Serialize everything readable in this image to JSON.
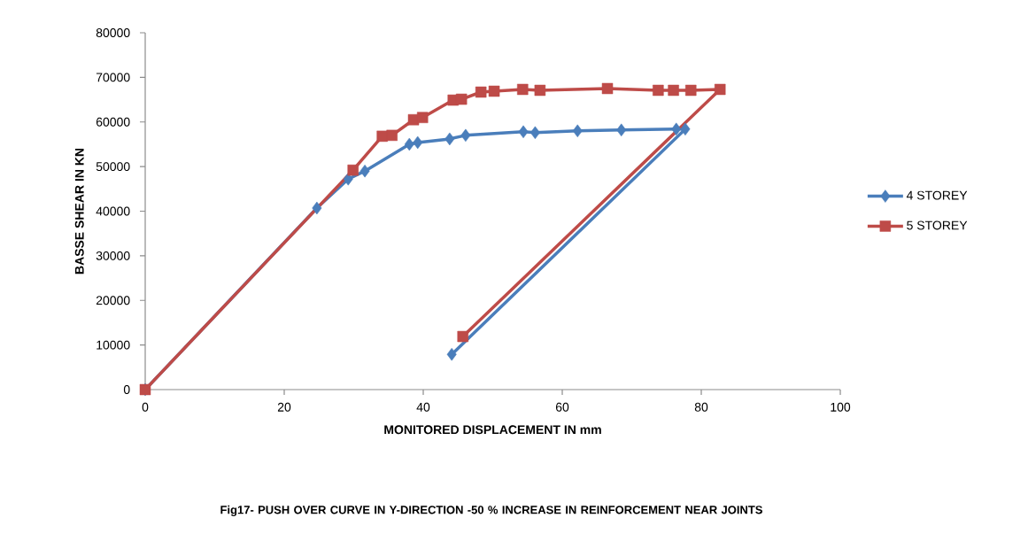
{
  "chart_data": {
    "type": "line",
    "xlabel": "MONITORED DISPLACEMENT IN mm",
    "ylabel": "BASSE SHEAR IN KN",
    "annotations": [
      "Fig17- PUSH  OVER CURVE IN Y-DIRECTION -50 % INCREASE IN REINFORCEMENT NEAR JOINTS"
    ],
    "xlim": [
      0,
      100
    ],
    "xticks": [
      0,
      20,
      40,
      60,
      80,
      100
    ],
    "ylim": [
      0,
      80000
    ],
    "yticks": [
      0,
      10000,
      20000,
      30000,
      40000,
      50000,
      60000,
      70000,
      80000
    ],
    "grid": false,
    "legend": "right",
    "line_style": "solid",
    "series": [
      {
        "name": "4 STOREY",
        "color": "#4a7ebb",
        "marker": "diamond",
        "x": [
          0,
          24.7,
          29.2,
          31.6,
          38,
          39.2,
          43.8,
          46.1,
          54.4,
          56.1,
          62.2,
          68.5,
          76.4,
          77.7,
          44.1
        ],
        "values": [
          0,
          40700,
          47200,
          49000,
          55000,
          55400,
          56200,
          57000,
          57800,
          57600,
          58000,
          58200,
          58400,
          58400,
          7900
        ]
      },
      {
        "name": "5 STOREY",
        "color": "#be4b48",
        "marker": "square",
        "x": [
          0,
          29.9,
          34.1,
          35.5,
          38.6,
          39.9,
          44.3,
          45.5,
          48.3,
          50.2,
          54.3,
          56.8,
          66.5,
          73.8,
          76,
          78.5,
          82.7,
          45.7
        ],
        "values": [
          0,
          49200,
          56800,
          57000,
          60500,
          61000,
          64900,
          65100,
          66700,
          66900,
          67300,
          67100,
          67500,
          67100,
          67100,
          67100,
          67300,
          11900
        ]
      }
    ]
  }
}
